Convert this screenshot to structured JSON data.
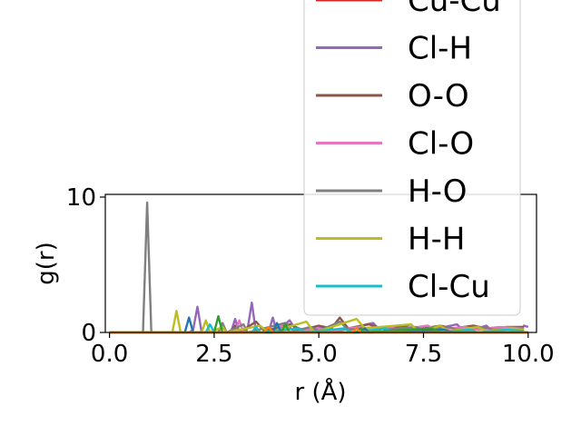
{
  "chart_data": {
    "type": "line",
    "xlabel": "r (Å)",
    "ylabel": "g(r)",
    "xlim": [
      -0.1,
      10.2
    ],
    "ylim": [
      0,
      10.2
    ],
    "xticks": [
      0.0,
      2.5,
      5.0,
      7.5,
      10.0
    ],
    "xtick_labels": [
      "0.0",
      "2.5",
      "5.0",
      "7.5",
      "10.0"
    ],
    "yticks": [
      0,
      10
    ],
    "ytick_labels": [
      "0",
      "10"
    ],
    "legend_position": "upper-right",
    "series": [
      {
        "name": "Cu-Cu",
        "color": "#d62728",
        "points": [
          [
            0.0,
            0
          ],
          [
            10.0,
            0
          ]
        ]
      },
      {
        "name": "Cl-H",
        "color": "#9467bd",
        "points": [
          [
            0.0,
            0
          ],
          [
            1.9,
            0
          ],
          [
            2.0,
            0.2
          ],
          [
            2.1,
            1.9
          ],
          [
            2.2,
            0
          ],
          [
            2.9,
            0
          ],
          [
            3.0,
            1.0
          ],
          [
            3.1,
            0
          ],
          [
            3.3,
            0.3
          ],
          [
            3.4,
            2.2
          ],
          [
            3.5,
            0
          ],
          [
            3.8,
            0
          ],
          [
            3.9,
            1.1
          ],
          [
            4.0,
            0
          ],
          [
            4.3,
            0.9
          ],
          [
            4.5,
            0
          ],
          [
            5.1,
            0.4
          ],
          [
            5.3,
            0
          ],
          [
            6.3,
            0.7
          ],
          [
            6.5,
            0
          ],
          [
            7.2,
            0.6
          ],
          [
            7.4,
            0
          ],
          [
            8.3,
            0.6
          ],
          [
            8.5,
            0
          ],
          [
            9.0,
            0.5
          ],
          [
            9.2,
            0
          ],
          [
            9.6,
            0.3
          ],
          [
            9.8,
            0
          ],
          [
            9.9,
            0.5
          ],
          [
            10.0,
            0.4
          ]
        ]
      },
      {
        "name": "O-O",
        "color": "#8c564b",
        "points": [
          [
            0.0,
            0
          ],
          [
            2.9,
            0
          ],
          [
            3.0,
            0.5
          ],
          [
            3.1,
            0
          ],
          [
            3.5,
            0.8
          ],
          [
            3.7,
            0.1
          ],
          [
            4.3,
            0.6
          ],
          [
            4.6,
            0.2
          ],
          [
            5.0,
            0.5
          ],
          [
            5.3,
            0.3
          ],
          [
            5.5,
            1.1
          ],
          [
            5.7,
            0.3
          ],
          [
            6.2,
            0.6
          ],
          [
            6.5,
            0.3
          ],
          [
            7.0,
            0.5
          ],
          [
            7.3,
            0.2
          ],
          [
            7.9,
            0.5
          ],
          [
            8.2,
            0.3
          ],
          [
            8.7,
            0.5
          ],
          [
            9.0,
            0.3
          ],
          [
            9.5,
            0.4
          ],
          [
            9.9,
            0.4
          ]
        ]
      },
      {
        "name": "Cl-O",
        "color": "#e377c2",
        "points": [
          [
            0.0,
            0
          ],
          [
            3.0,
            0
          ],
          [
            3.1,
            0.9
          ],
          [
            3.2,
            0
          ],
          [
            4.0,
            0
          ],
          [
            4.1,
            0.6
          ],
          [
            4.2,
            0
          ],
          [
            5.0,
            0.3
          ],
          [
            5.2,
            0.1
          ],
          [
            6.0,
            0.4
          ],
          [
            6.2,
            0.1
          ],
          [
            6.7,
            0.4
          ],
          [
            6.9,
            0.2
          ],
          [
            7.6,
            0.5
          ],
          [
            7.8,
            0.2
          ],
          [
            8.5,
            0.4
          ],
          [
            8.8,
            0.2
          ],
          [
            9.3,
            0.4
          ],
          [
            9.9,
            0.3
          ]
        ]
      },
      {
        "name": "H-O",
        "color": "#7f7f7f",
        "points": [
          [
            0.0,
            0
          ],
          [
            0.8,
            0
          ],
          [
            0.9,
            9.6
          ],
          [
            1.0,
            0
          ],
          [
            2.6,
            0
          ],
          [
            2.7,
            0.7
          ],
          [
            2.8,
            0
          ],
          [
            3.2,
            0.6
          ],
          [
            3.3,
            0
          ],
          [
            4.2,
            0.7
          ],
          [
            4.4,
            0.1
          ],
          [
            4.8,
            0.4
          ],
          [
            5.0,
            0.1
          ],
          [
            5.5,
            0.8
          ],
          [
            5.7,
            0.2
          ],
          [
            6.4,
            0.4
          ],
          [
            6.6,
            0.2
          ],
          [
            7.3,
            0.4
          ],
          [
            7.5,
            0.2
          ],
          [
            8.1,
            0.4
          ],
          [
            8.3,
            0.2
          ],
          [
            8.9,
            0.4
          ],
          [
            9.2,
            0.2
          ],
          [
            9.9,
            0.3
          ]
        ]
      },
      {
        "name": "H-H",
        "color": "#bcbd22",
        "points": [
          [
            0.0,
            0
          ],
          [
            1.5,
            0
          ],
          [
            1.6,
            1.6
          ],
          [
            1.7,
            0
          ],
          [
            2.2,
            0
          ],
          [
            2.3,
            0.9
          ],
          [
            2.4,
            0
          ],
          [
            2.7,
            0.4
          ],
          [
            2.8,
            0
          ],
          [
            3.6,
            0.5
          ],
          [
            3.8,
            0
          ],
          [
            4.7,
            0.8
          ],
          [
            4.9,
            0
          ],
          [
            5.9,
            1.0
          ],
          [
            6.1,
            0.3
          ],
          [
            7.2,
            0.6
          ],
          [
            7.4,
            0
          ],
          [
            7.9,
            0.5
          ],
          [
            8.1,
            0.1
          ],
          [
            8.8,
            0.4
          ],
          [
            9.0,
            0.1
          ],
          [
            9.6,
            0.3
          ],
          [
            9.9,
            0.2
          ]
        ]
      },
      {
        "name": "Cl-Cu",
        "color": "#17becf",
        "points": [
          [
            0.0,
            0
          ],
          [
            2.3,
            0
          ],
          [
            2.4,
            0.6
          ],
          [
            2.5,
            0
          ],
          [
            3.4,
            0
          ],
          [
            3.5,
            0.4
          ],
          [
            3.6,
            0
          ],
          [
            4.5,
            0.3
          ],
          [
            4.7,
            0
          ],
          [
            5.6,
            0.3
          ],
          [
            5.8,
            0
          ],
          [
            6.6,
            0.3
          ],
          [
            6.8,
            0
          ],
          [
            7.7,
            0.2
          ],
          [
            7.9,
            0
          ],
          [
            8.6,
            0.2
          ],
          [
            8.8,
            0
          ],
          [
            9.5,
            0.2
          ],
          [
            9.9,
            0.1
          ]
        ]
      },
      {
        "name": "",
        "color": "#1f77b4",
        "points": [
          [
            0.0,
            0
          ],
          [
            1.8,
            0
          ],
          [
            1.9,
            1.1
          ],
          [
            2.0,
            0
          ],
          [
            3.9,
            0
          ],
          [
            4.0,
            0.7
          ],
          [
            4.1,
            0
          ],
          [
            6.0,
            0
          ],
          [
            6.1,
            0.3
          ],
          [
            6.2,
            0
          ],
          [
            8.0,
            0.2
          ],
          [
            8.2,
            0
          ],
          [
            10.0,
            0
          ]
        ]
      },
      {
        "name": "",
        "color": "#2ca02c",
        "points": [
          [
            0.0,
            0
          ],
          [
            2.5,
            0
          ],
          [
            2.6,
            1.2
          ],
          [
            2.7,
            0
          ],
          [
            4.1,
            0
          ],
          [
            4.2,
            0.6
          ],
          [
            4.3,
            0
          ],
          [
            5.9,
            0
          ],
          [
            6.0,
            0.3
          ],
          [
            6.1,
            0
          ],
          [
            7.7,
            0.3
          ],
          [
            7.9,
            0
          ],
          [
            10.0,
            0
          ]
        ]
      },
      {
        "name": "",
        "color": "#ff7f0e",
        "points": [
          [
            0.0,
            0
          ],
          [
            3.7,
            0
          ],
          [
            3.8,
            0.4
          ],
          [
            3.9,
            0
          ],
          [
            5.8,
            0
          ],
          [
            5.9,
            0.3
          ],
          [
            6.0,
            0
          ],
          [
            10.0,
            0
          ]
        ]
      }
    ]
  }
}
